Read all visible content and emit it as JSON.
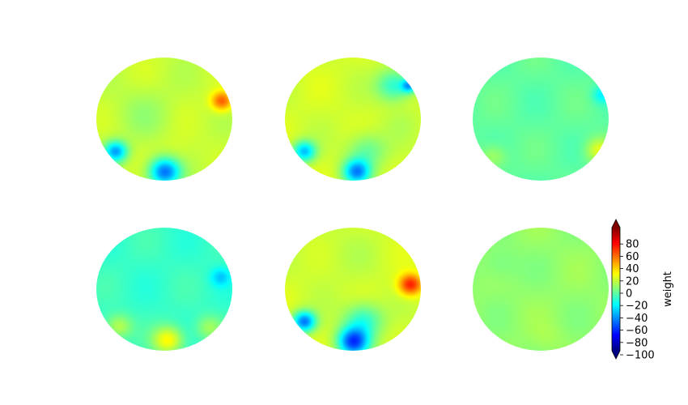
{
  "chart_data": {
    "type": "heatmap",
    "colormap": "jet",
    "colorbar": {
      "label": "weight",
      "vmin": -100,
      "vmax": 100,
      "extend": "both",
      "ticks": [
        80,
        60,
        40,
        20,
        0,
        -20,
        -40,
        -60,
        -80,
        -100
      ],
      "tick_labels": [
        "80",
        "60",
        "40",
        "20",
        "0",
        "−20",
        "−40",
        "−60",
        "−80",
        "−100"
      ],
      "placement": "right"
    },
    "grid": {
      "rows": 2,
      "cols": 3
    },
    "panels": [
      {
        "base": 14,
        "blobs": [
          {
            "u": 0.84,
            "v": -0.3,
            "s": 0.11,
            "val": 62
          },
          {
            "u": -0.72,
            "v": 0.52,
            "s": 0.12,
            "val": -48
          },
          {
            "u": 0.0,
            "v": 0.85,
            "s": 0.16,
            "val": -60
          },
          {
            "u": 0.15,
            "v": 0.55,
            "s": 0.2,
            "val": 18
          },
          {
            "u": -0.3,
            "v": -0.1,
            "s": 0.3,
            "val": 6
          }
        ]
      },
      {
        "base": 16,
        "blobs": [
          {
            "u": 0.6,
            "v": -0.55,
            "s": 0.18,
            "val": -22
          },
          {
            "u": 0.82,
            "v": -0.55,
            "s": 0.08,
            "val": -40
          },
          {
            "u": -0.72,
            "v": 0.52,
            "s": 0.12,
            "val": -42
          },
          {
            "u": 0.05,
            "v": 0.85,
            "s": 0.14,
            "val": -52
          },
          {
            "u": 0.2,
            "v": 0.5,
            "s": 0.2,
            "val": -8
          },
          {
            "u": 0.7,
            "v": 0.05,
            "s": 0.18,
            "val": 12
          }
        ]
      },
      {
        "base": -6,
        "blobs": [
          {
            "u": 0.9,
            "v": -0.4,
            "s": 0.1,
            "val": -28
          },
          {
            "u": 0.85,
            "v": 0.5,
            "s": 0.14,
            "val": 22
          },
          {
            "u": -0.7,
            "v": 0.6,
            "s": 0.14,
            "val": 10
          }
        ]
      },
      {
        "base": -14,
        "blobs": [
          {
            "u": 0.82,
            "v": -0.2,
            "s": 0.1,
            "val": -36
          },
          {
            "u": 0.05,
            "v": 0.82,
            "s": 0.16,
            "val": 30
          },
          {
            "u": -0.68,
            "v": 0.6,
            "s": 0.14,
            "val": 14
          },
          {
            "u": 0.65,
            "v": 0.62,
            "s": 0.14,
            "val": 8
          }
        ]
      },
      {
        "base": 16,
        "blobs": [
          {
            "u": 0.84,
            "v": -0.08,
            "s": 0.12,
            "val": 76
          },
          {
            "u": -0.72,
            "v": 0.52,
            "s": 0.12,
            "val": -58
          },
          {
            "u": 0.0,
            "v": 0.85,
            "s": 0.16,
            "val": -68
          },
          {
            "u": 0.15,
            "v": 0.5,
            "s": 0.2,
            "val": -20
          },
          {
            "u": -0.2,
            "v": -0.55,
            "s": 0.35,
            "val": 12
          }
        ]
      },
      {
        "base": 4,
        "blobs": [
          {
            "u": 0.1,
            "v": 0.78,
            "s": 0.16,
            "val": 8
          },
          {
            "u": -0.6,
            "v": -0.4,
            "s": 0.2,
            "val": -4
          }
        ]
      }
    ]
  }
}
